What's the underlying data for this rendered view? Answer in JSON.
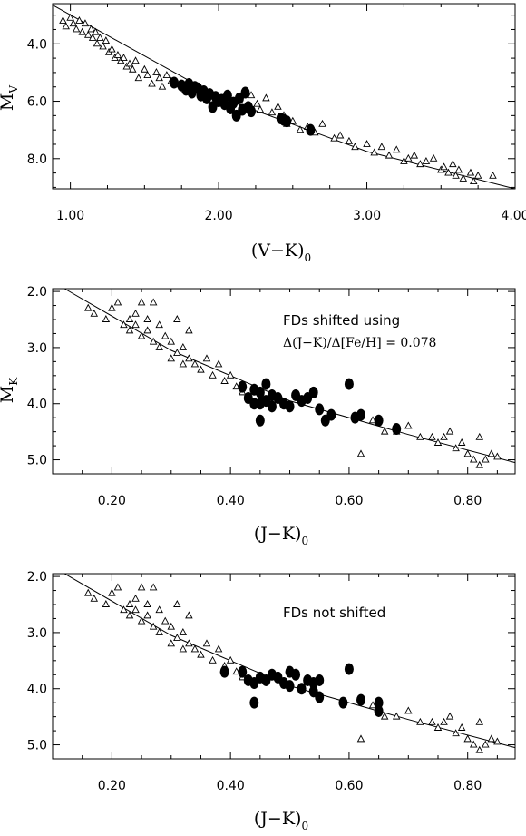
{
  "chart_data": [
    {
      "type": "scatter",
      "panel": "top",
      "xlabel": "(V−K)",
      "xlabel_sub": "0",
      "ylabel": "M",
      "ylabel_sub": "V",
      "xlim": [
        0.88,
        4.0
      ],
      "ylim": [
        9.05,
        2.6
      ],
      "x_ticks": [
        1.0,
        2.0,
        3.0,
        4.0
      ],
      "x_tick_labels": [
        "1.00",
        "2.00",
        "3.00",
        "4.00"
      ],
      "y_ticks": [
        4.0,
        6.0,
        8.0
      ],
      "y_tick_labels": [
        "4.0",
        "6.0",
        "8.0"
      ],
      "annotations": [],
      "fit_line": {
        "x": [
          0.88,
          2.0,
          3.0,
          4.0
        ],
        "y": [
          2.65,
          5.85,
          7.75,
          9.05
        ]
      },
      "series": [
        {
          "marker": "open-triangle",
          "x": [
            0.95,
            0.97,
            1.0,
            1.02,
            1.04,
            1.06,
            1.08,
            1.1,
            1.12,
            1.14,
            1.15,
            1.17,
            1.18,
            1.2,
            1.22,
            1.24,
            1.26,
            1.28,
            1.3,
            1.32,
            1.34,
            1.36,
            1.38,
            1.4,
            1.42,
            1.44,
            1.46,
            1.5,
            1.52,
            1.55,
            1.58,
            1.6,
            1.62,
            1.65,
            1.68,
            2.22,
            2.26,
            2.28,
            2.32,
            2.36,
            2.4,
            2.44,
            2.46,
            2.5,
            2.55,
            2.6,
            2.65,
            2.7,
            2.78,
            2.82,
            2.88,
            2.92,
            3.0,
            3.05,
            3.1,
            3.15,
            3.2,
            3.25,
            3.28,
            3.32,
            3.36,
            3.4,
            3.45,
            3.5,
            3.52,
            3.55,
            3.58,
            3.6,
            3.62,
            3.65,
            3.7,
            3.72,
            3.75,
            3.85
          ],
          "y": [
            3.2,
            3.4,
            3.1,
            3.3,
            3.5,
            3.2,
            3.6,
            3.3,
            3.7,
            3.5,
            3.8,
            3.6,
            4.0,
            3.8,
            4.1,
            3.9,
            4.3,
            4.2,
            4.5,
            4.4,
            4.6,
            4.5,
            4.8,
            4.7,
            4.9,
            4.6,
            5.2,
            4.9,
            5.1,
            5.4,
            5.0,
            5.2,
            5.5,
            5.1,
            5.3,
            5.8,
            6.1,
            6.3,
            5.9,
            6.4,
            6.2,
            6.5,
            6.8,
            6.7,
            7.0,
            6.9,
            7.1,
            6.8,
            7.3,
            7.2,
            7.4,
            7.6,
            7.5,
            7.8,
            7.6,
            7.9,
            7.7,
            8.1,
            8.0,
            7.9,
            8.2,
            8.1,
            8.0,
            8.4,
            8.3,
            8.5,
            8.2,
            8.6,
            8.4,
            8.7,
            8.5,
            8.8,
            8.6,
            8.6
          ]
        },
        {
          "marker": "filled-circle",
          "x": [
            1.7,
            1.75,
            1.78,
            1.8,
            1.82,
            1.84,
            1.86,
            1.88,
            1.9,
            1.92,
            1.94,
            1.96,
            1.98,
            2.0,
            2.02,
            2.04,
            2.06,
            2.08,
            2.1,
            2.12,
            2.14,
            2.16,
            2.18,
            2.2,
            2.22,
            2.42,
            2.44,
            2.46,
            2.62
          ],
          "y": [
            5.35,
            5.45,
            5.6,
            5.4,
            5.7,
            5.5,
            5.55,
            5.8,
            5.65,
            5.9,
            5.75,
            6.2,
            5.85,
            6.0,
            5.95,
            6.1,
            5.8,
            6.25,
            6.05,
            6.5,
            5.9,
            6.3,
            5.7,
            6.2,
            6.35,
            6.6,
            6.65,
            6.7,
            7.0
          ]
        }
      ]
    },
    {
      "type": "scatter",
      "panel": "middle",
      "xlabel": "(J−K)",
      "xlabel_sub": "0",
      "ylabel": "M",
      "ylabel_sub": "K",
      "xlim": [
        0.1,
        0.88
      ],
      "ylim": [
        5.25,
        1.95
      ],
      "x_ticks": [
        0.2,
        0.4,
        0.6,
        0.8
      ],
      "x_tick_labels": [
        "0.20",
        "0.40",
        "0.60",
        "0.80"
      ],
      "y_ticks": [
        2.0,
        3.0,
        4.0,
        5.0
      ],
      "y_tick_labels": [
        "2.0",
        "3.0",
        "4.0",
        "5.0"
      ],
      "annotations": [
        "FDs shifted using",
        "Δ(J−K)/Δ[Fe/H] = 0.078"
      ],
      "fit_line": {
        "x": [
          0.12,
          0.3,
          0.5,
          0.7,
          0.88
        ],
        "y": [
          1.95,
          3.05,
          3.95,
          4.55,
          5.05
        ]
      },
      "series": [
        {
          "marker": "open-triangle",
          "x": [
            0.16,
            0.17,
            0.19,
            0.2,
            0.21,
            0.22,
            0.23,
            0.23,
            0.24,
            0.24,
            0.25,
            0.25,
            0.26,
            0.26,
            0.27,
            0.27,
            0.28,
            0.28,
            0.29,
            0.3,
            0.3,
            0.31,
            0.31,
            0.32,
            0.32,
            0.33,
            0.33,
            0.34,
            0.35,
            0.36,
            0.37,
            0.38,
            0.39,
            0.4,
            0.41,
            0.42,
            0.62,
            0.64,
            0.66,
            0.68,
            0.7,
            0.72,
            0.74,
            0.75,
            0.76,
            0.77,
            0.78,
            0.79,
            0.8,
            0.81,
            0.82,
            0.82,
            0.83,
            0.84,
            0.85
          ],
          "y": [
            2.3,
            2.4,
            2.5,
            2.3,
            2.2,
            2.6,
            2.5,
            2.7,
            2.4,
            2.6,
            2.2,
            2.8,
            2.5,
            2.7,
            2.2,
            2.9,
            2.6,
            3.0,
            2.8,
            2.9,
            3.2,
            2.5,
            3.1,
            3.0,
            3.3,
            3.2,
            2.7,
            3.3,
            3.4,
            3.2,
            3.5,
            3.3,
            3.6,
            3.5,
            3.7,
            3.8,
            4.9,
            4.3,
            4.5,
            4.5,
            4.4,
            4.6,
            4.6,
            4.7,
            4.6,
            4.5,
            4.8,
            4.7,
            4.9,
            5.0,
            4.6,
            5.1,
            5.0,
            4.9,
            4.95
          ]
        },
        {
          "marker": "filled-circle",
          "x": [
            0.42,
            0.43,
            0.44,
            0.44,
            0.45,
            0.45,
            0.46,
            0.46,
            0.47,
            0.47,
            0.48,
            0.49,
            0.5,
            0.51,
            0.52,
            0.53,
            0.54,
            0.55,
            0.56,
            0.57,
            0.6,
            0.61,
            0.62,
            0.65,
            0.68,
            0.45
          ],
          "y": [
            3.7,
            3.9,
            3.75,
            4.0,
            3.8,
            4.0,
            3.65,
            3.95,
            3.85,
            4.05,
            3.9,
            4.0,
            4.05,
            3.85,
            3.95,
            3.9,
            3.8,
            4.1,
            4.3,
            4.2,
            3.65,
            4.25,
            4.2,
            4.3,
            4.45,
            4.3
          ]
        }
      ]
    },
    {
      "type": "scatter",
      "panel": "bottom",
      "xlabel": "(J−K)",
      "xlabel_sub": "0",
      "ylabel": "",
      "ylabel_sub": "",
      "xlim": [
        0.1,
        0.88
      ],
      "ylim": [
        5.25,
        1.95
      ],
      "x_ticks": [
        0.2,
        0.4,
        0.6,
        0.8
      ],
      "x_tick_labels": [
        "0.20",
        "0.40",
        "0.60",
        "0.80"
      ],
      "y_ticks": [
        2.0,
        3.0,
        4.0,
        5.0
      ],
      "y_tick_labels": [
        "2.0",
        "3.0",
        "4.0",
        "5.0"
      ],
      "annotations": [
        "FDs not shifted"
      ],
      "fit_line": {
        "x": [
          0.12,
          0.3,
          0.5,
          0.7,
          0.88
        ],
        "y": [
          1.95,
          3.05,
          3.95,
          4.55,
          5.05
        ]
      },
      "series": [
        {
          "marker": "open-triangle",
          "x": [
            0.16,
            0.17,
            0.19,
            0.2,
            0.21,
            0.22,
            0.23,
            0.23,
            0.24,
            0.24,
            0.25,
            0.25,
            0.26,
            0.26,
            0.27,
            0.27,
            0.28,
            0.28,
            0.29,
            0.3,
            0.3,
            0.31,
            0.31,
            0.32,
            0.32,
            0.33,
            0.33,
            0.34,
            0.35,
            0.36,
            0.37,
            0.38,
            0.39,
            0.4,
            0.41,
            0.42,
            0.62,
            0.64,
            0.66,
            0.68,
            0.7,
            0.72,
            0.74,
            0.75,
            0.76,
            0.77,
            0.78,
            0.79,
            0.8,
            0.81,
            0.82,
            0.82,
            0.83,
            0.84,
            0.85
          ],
          "y": [
            2.3,
            2.4,
            2.5,
            2.3,
            2.2,
            2.6,
            2.5,
            2.7,
            2.4,
            2.6,
            2.2,
            2.8,
            2.5,
            2.7,
            2.2,
            2.9,
            2.6,
            3.0,
            2.8,
            2.9,
            3.2,
            2.5,
            3.1,
            3.0,
            3.3,
            3.2,
            2.7,
            3.3,
            3.4,
            3.2,
            3.5,
            3.3,
            3.6,
            3.5,
            3.7,
            3.8,
            4.9,
            4.3,
            4.5,
            4.5,
            4.4,
            4.6,
            4.6,
            4.7,
            4.6,
            4.5,
            4.8,
            4.7,
            4.9,
            5.0,
            4.6,
            5.1,
            5.0,
            4.9,
            4.95
          ]
        },
        {
          "marker": "filled-circle",
          "x": [
            0.39,
            0.42,
            0.43,
            0.44,
            0.44,
            0.45,
            0.46,
            0.47,
            0.48,
            0.49,
            0.5,
            0.5,
            0.51,
            0.52,
            0.53,
            0.54,
            0.54,
            0.55,
            0.55,
            0.59,
            0.6,
            0.62,
            0.65,
            0.65
          ],
          "y": [
            3.7,
            3.7,
            3.85,
            3.9,
            4.25,
            3.8,
            3.85,
            3.75,
            3.8,
            3.9,
            3.7,
            3.95,
            3.75,
            4.0,
            3.85,
            3.9,
            4.05,
            4.15,
            3.85,
            4.25,
            3.65,
            4.2,
            4.25,
            4.4
          ]
        }
      ]
    }
  ]
}
